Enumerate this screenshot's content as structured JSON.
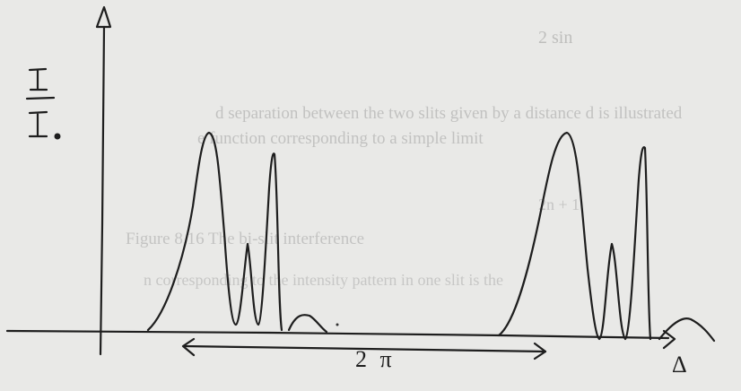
{
  "diagram": {
    "y_axis_label_numerator": "I",
    "y_axis_label_denominator": "I",
    "y_axis_label_subscript": "o",
    "x_axis_label": "Δ",
    "period_label": "2 π",
    "period_arrow": "double-headed",
    "pattern_description": "interference intensity peaks repeating with period 2π"
  },
  "background_text": {
    "lines": [
      "2 sin",
      "d separation between the two slits given by a distance d is illustrated",
      "e function corresponding to a simple limit",
      "Figure 8.16  The bi-slit interference",
      "n corresponding to the intensity pattern in one slit is the",
      "2n + 1"
    ]
  }
}
